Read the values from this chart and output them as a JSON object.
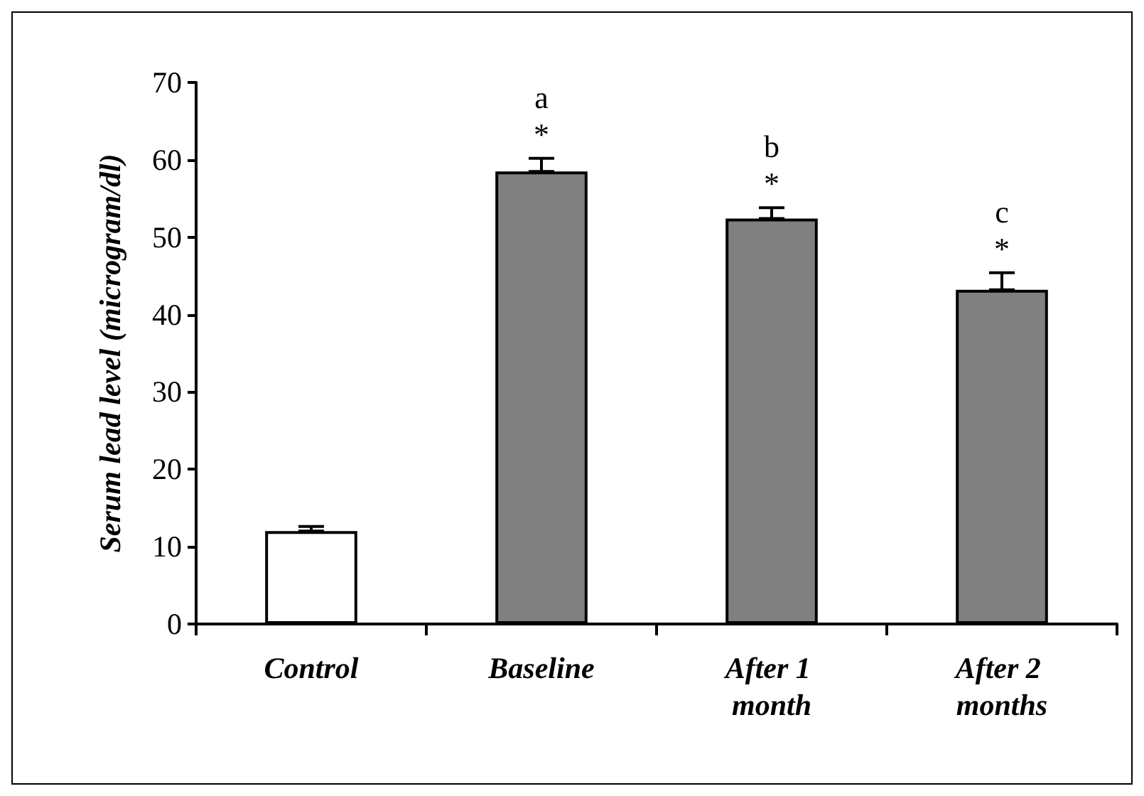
{
  "chart_data": {
    "type": "bar",
    "ylabel": "Serum lead level (microgram/dl)",
    "categories": [
      "Control",
      "Baseline",
      "After 1 month",
      "After 2 months"
    ],
    "values": [
      12,
      58.5,
      52.4,
      43.2
    ],
    "colors": [
      "#ffffff",
      "#808080",
      "#808080",
      "#808080"
    ],
    "errors": [
      [
        12,
        12.6
      ],
      [
        58.5,
        60.2
      ],
      [
        52.4,
        53.8
      ],
      [
        43.2,
        45.4
      ]
    ],
    "ylim": [
      0,
      70
    ],
    "yticks": [
      0,
      10,
      20,
      30,
      40,
      50,
      60,
      70
    ],
    "grid": false,
    "annotations": [
      "a\n*",
      "b\n*",
      "c\n*"
    ]
  }
}
